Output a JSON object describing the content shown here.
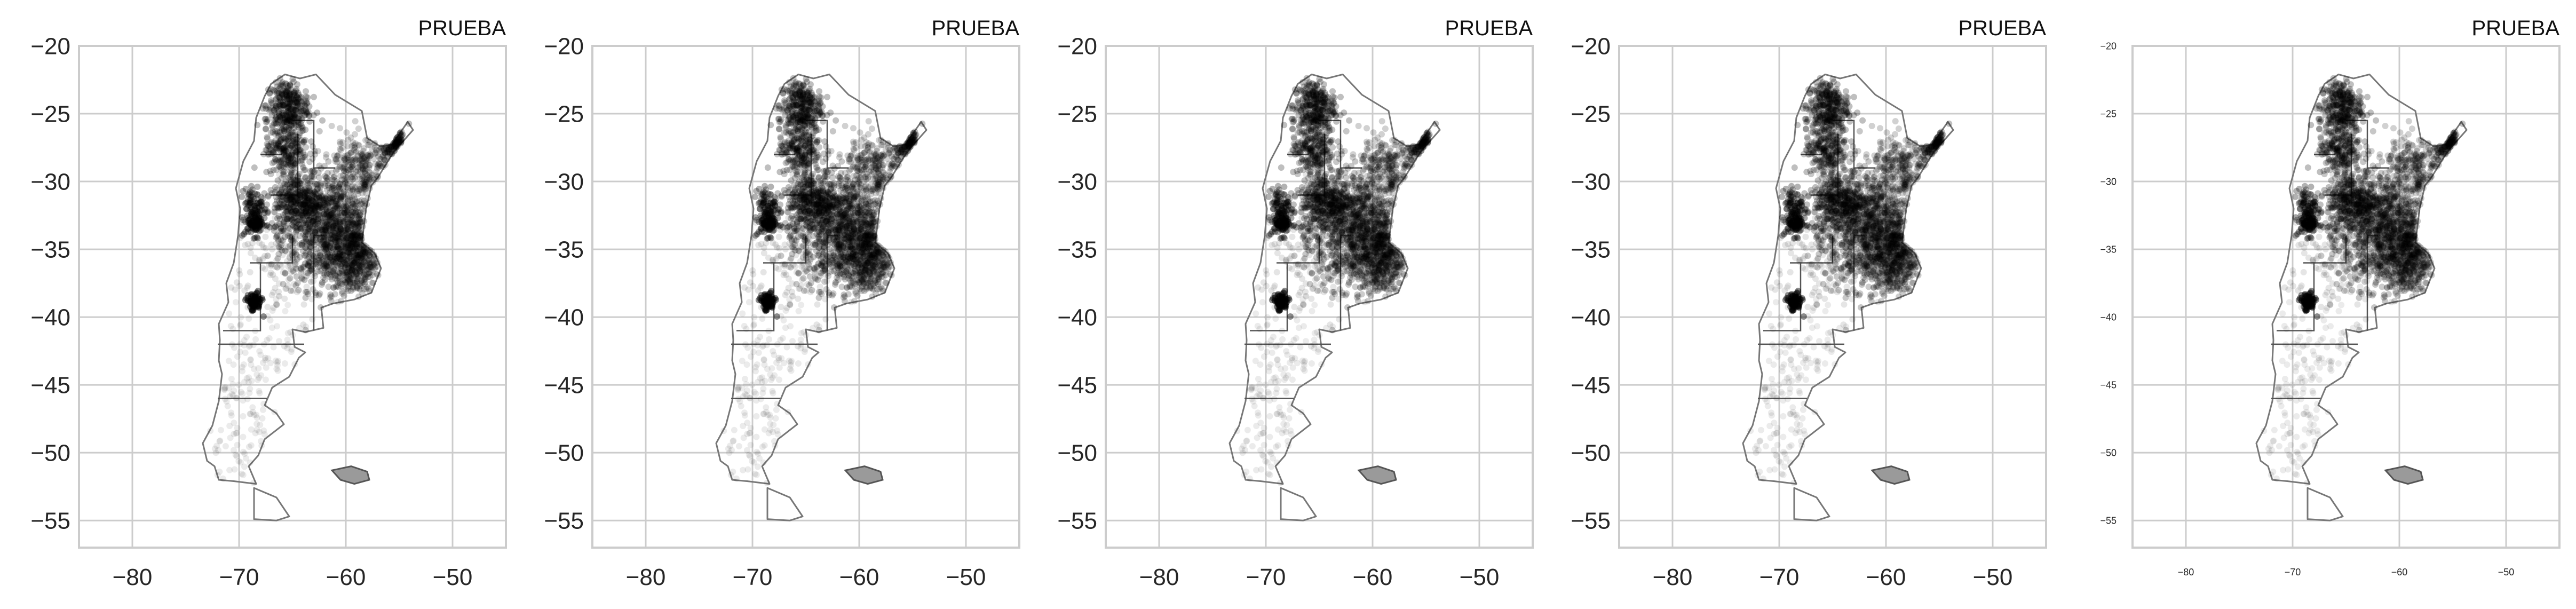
{
  "chart_data": [
    {
      "type": "scatter",
      "title": "PRUEBA",
      "xlim": [
        -85,
        -45
      ],
      "ylim": [
        -57,
        -20
      ],
      "xticks": [
        "−80",
        "−70",
        "−60",
        "−50"
      ],
      "yticks": [
        "−20",
        "−25",
        "−30",
        "−35",
        "−40",
        "−45",
        "−50",
        "−55"
      ],
      "xlabel": "",
      "ylabel": "",
      "grid": true,
      "marker_color": "#000000"
    },
    {
      "type": "scatter",
      "title": "PRUEBA",
      "xlim": [
        -85,
        -45
      ],
      "ylim": [
        -57,
        -20
      ],
      "xticks": [
        "−80",
        "−70",
        "−60",
        "−50"
      ],
      "yticks": [
        "−20",
        "−25",
        "−30",
        "−35",
        "−40",
        "−45",
        "−50",
        "−55"
      ],
      "xlabel": "",
      "ylabel": "",
      "grid": true,
      "marker_color": "#000000"
    },
    {
      "type": "scatter",
      "title": "PRUEBA",
      "xlim": [
        -85,
        -45
      ],
      "ylim": [
        -57,
        -20
      ],
      "xticks": [
        "−80",
        "−70",
        "−60",
        "−50"
      ],
      "yticks": [
        "−20",
        "−25",
        "−30",
        "−35",
        "−40",
        "−45",
        "−50",
        "−55"
      ],
      "xlabel": "",
      "ylabel": "",
      "grid": true,
      "marker_color": "#000000"
    },
    {
      "type": "scatter",
      "title": "PRUEBA",
      "xlim": [
        -85,
        -45
      ],
      "ylim": [
        -57,
        -20
      ],
      "xticks": [
        "−80",
        "−70",
        "−60",
        "−50"
      ],
      "yticks": [
        "−20",
        "−25",
        "−30",
        "−35",
        "−40",
        "−45",
        "−50",
        "−55"
      ],
      "xlabel": "",
      "ylabel": "",
      "grid": true,
      "marker_color": "#000000"
    },
    {
      "type": "scatter",
      "title": "PRUEBA",
      "xlim": [
        -85,
        -45
      ],
      "ylim": [
        -57,
        -20
      ],
      "xticks": [
        "−80",
        "−70",
        "−60",
        "−50"
      ],
      "yticks": [
        "−20",
        "−25",
        "−30",
        "−35",
        "−40",
        "−45",
        "−50",
        "−55"
      ],
      "xlabel": "",
      "ylabel": "",
      "grid": true,
      "marker_color": "#000000",
      "small_ticks": true
    }
  ],
  "map": {
    "outline_lonlat": [
      [
        -65.7,
        -22.1
      ],
      [
        -64.3,
        -22.4
      ],
      [
        -62.8,
        -22.1
      ],
      [
        -61.0,
        -23.6
      ],
      [
        -58.5,
        -24.8
      ],
      [
        -58.0,
        -26.8
      ],
      [
        -56.8,
        -27.4
      ],
      [
        -55.7,
        -27.3
      ],
      [
        -54.2,
        -25.6
      ],
      [
        -53.7,
        -26.2
      ],
      [
        -55.5,
        -27.8
      ],
      [
        -57.0,
        -29.7
      ],
      [
        -57.6,
        -30.3
      ],
      [
        -58.1,
        -32.0
      ],
      [
        -58.4,
        -33.9
      ],
      [
        -58.5,
        -34.5
      ],
      [
        -57.3,
        -35.3
      ],
      [
        -56.7,
        -36.4
      ],
      [
        -57.6,
        -38.2
      ],
      [
        -59.2,
        -38.7
      ],
      [
        -61.2,
        -39.0
      ],
      [
        -62.3,
        -39.3
      ],
      [
        -62.1,
        -40.8
      ],
      [
        -63.8,
        -41.1
      ],
      [
        -65.0,
        -40.9
      ],
      [
        -64.8,
        -42.2
      ],
      [
        -63.8,
        -42.6
      ],
      [
        -64.4,
        -43.0
      ],
      [
        -65.3,
        -44.4
      ],
      [
        -66.9,
        -45.2
      ],
      [
        -67.6,
        -46.5
      ],
      [
        -66.5,
        -47.1
      ],
      [
        -65.8,
        -47.9
      ],
      [
        -67.6,
        -49.0
      ],
      [
        -68.2,
        -50.2
      ],
      [
        -69.1,
        -51.0
      ],
      [
        -68.4,
        -52.3
      ],
      [
        -70.5,
        -52.1
      ],
      [
        -71.9,
        -52.0
      ],
      [
        -72.3,
        -51.0
      ],
      [
        -73.0,
        -50.6
      ],
      [
        -73.4,
        -49.3
      ],
      [
        -72.5,
        -48.0
      ],
      [
        -71.9,
        -46.2
      ],
      [
        -71.6,
        -44.2
      ],
      [
        -71.9,
        -43.2
      ],
      [
        -71.8,
        -41.7
      ],
      [
        -71.9,
        -40.5
      ],
      [
        -71.0,
        -38.9
      ],
      [
        -71.2,
        -37.5
      ],
      [
        -70.5,
        -36.0
      ],
      [
        -70.1,
        -34.0
      ],
      [
        -69.9,
        -32.0
      ],
      [
        -70.3,
        -30.5
      ],
      [
        -69.6,
        -28.5
      ],
      [
        -68.6,
        -27.0
      ],
      [
        -68.4,
        -25.3
      ],
      [
        -67.6,
        -23.7
      ],
      [
        -67.0,
        -22.8
      ],
      [
        -65.7,
        -22.1
      ]
    ],
    "tierra_lonlat": [
      [
        -68.6,
        -52.6
      ],
      [
        -66.5,
        -53.3
      ],
      [
        -65.3,
        -54.7
      ],
      [
        -66.5,
        -55.0
      ],
      [
        -68.6,
        -54.9
      ],
      [
        -68.6,
        -52.6
      ]
    ],
    "malvinas_lonlat": [
      [
        -61.3,
        -51.3
      ],
      [
        -59.5,
        -51.0
      ],
      [
        -58.0,
        -51.4
      ],
      [
        -57.8,
        -52.0
      ],
      [
        -59.2,
        -52.3
      ],
      [
        -60.5,
        -52.0
      ],
      [
        -61.3,
        -51.3
      ]
    ],
    "boundaries_lonlat": [
      [
        [
          -65.0,
          -25.5
        ],
        [
          -63.0,
          -25.5
        ],
        [
          -63.0,
          -29.0
        ],
        [
          -61.0,
          -29.0
        ]
      ],
      [
        [
          -62.0,
          -34.0
        ],
        [
          -63.0,
          -34.0
        ],
        [
          -63.0,
          -41.0
        ]
      ],
      [
        [
          -68.0,
          -36.0
        ],
        [
          -68.0,
          -41.0
        ],
        [
          -71.5,
          -41.0
        ]
      ],
      [
        [
          -72.0,
          -42.0
        ],
        [
          -63.9,
          -42.0
        ]
      ],
      [
        [
          -72.0,
          -46.0
        ],
        [
          -67.4,
          -46.0
        ]
      ],
      [
        [
          -69.0,
          -36.0
        ],
        [
          -65.0,
          -36.0
        ],
        [
          -65.0,
          -34.0
        ]
      ],
      [
        [
          -67.0,
          -31.0
        ],
        [
          -64.5,
          -31.0
        ],
        [
          -64.5,
          -26.5
        ]
      ],
      [
        [
          -66.0,
          -28.0
        ],
        [
          -68.0,
          -28.0
        ]
      ]
    ]
  }
}
